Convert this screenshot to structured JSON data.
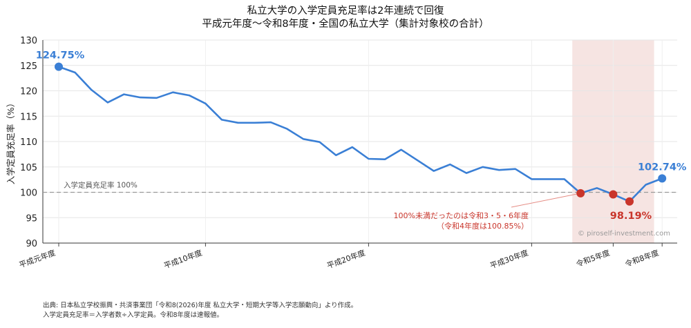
{
  "chart_data": {
    "type": "line",
    "title": "私立大学の入学定員充足率は2年連続で回復",
    "subtitle": "平成元年度〜令和8年度・全国の私立大学（集計対象校の合計）",
    "ylabel": "入学定員充足率（%）",
    "xlabel": "",
    "ylim": [
      90,
      130
    ],
    "yticks": [
      "90",
      "95",
      "100",
      "105",
      "110",
      "115",
      "120",
      "125",
      "130"
    ],
    "xticks": [
      {
        "index": 0,
        "label": "平成元年度"
      },
      {
        "index": 9,
        "label": "平成10年度"
      },
      {
        "index": 19,
        "label": "平成20年度"
      },
      {
        "index": 29,
        "label": "平成30年度"
      },
      {
        "index": 34,
        "label": "令和5年度"
      },
      {
        "index": 37,
        "label": "令和8年度"
      }
    ],
    "grid": true,
    "series": [
      {
        "color": "#3a7fd5",
        "values": [
          124.75,
          123.6,
          120.2,
          117.7,
          119.3,
          118.7,
          118.6,
          119.7,
          119.1,
          117.5,
          114.3,
          113.7,
          113.7,
          113.8,
          112.5,
          110.5,
          109.9,
          107.3,
          108.9,
          106.6,
          106.5,
          108.4,
          106.3,
          104.2,
          105.5,
          103.8,
          105.0,
          104.4,
          104.6,
          102.6,
          102.6,
          102.6,
          99.81,
          100.85,
          99.59,
          98.19,
          101.5,
          102.74
        ]
      }
    ],
    "highlight_points": [
      {
        "index": 0,
        "value": 124.75,
        "color": "#3a7fd5",
        "label": "124.75%"
      },
      {
        "index": 32,
        "value": 99.81,
        "color": "#c9352b",
        "label": ""
      },
      {
        "index": 34,
        "value": 99.59,
        "color": "#c9352b",
        "label": ""
      },
      {
        "index": 35,
        "value": 98.19,
        "color": "#c9352b",
        "label": "98.19%"
      },
      {
        "index": 37,
        "value": 102.74,
        "color": "#3a7fd5",
        "label": "102.74%"
      }
    ],
    "reference_line": {
      "value": 100,
      "label": "入学定員充足率 100%",
      "color": "#999999"
    },
    "shaded_range": {
      "from": 32,
      "to": 36,
      "color": "#f6e4e2"
    },
    "annotation": {
      "lines": [
        "100%未満だったのは令和3・5・6年度",
        "（令和4年度は100.85%）"
      ],
      "color": "#c9352b"
    },
    "watermark": "© piroself-investment.com"
  },
  "footnotes": [
    "出典: 日本私立学校振興・共済事業団「令和8(2026)年度 私立大学・短期大学等入学志願動向」より作成。",
    "入学定員充足率＝入学者数÷入学定員。令和8年度は速報値。"
  ]
}
